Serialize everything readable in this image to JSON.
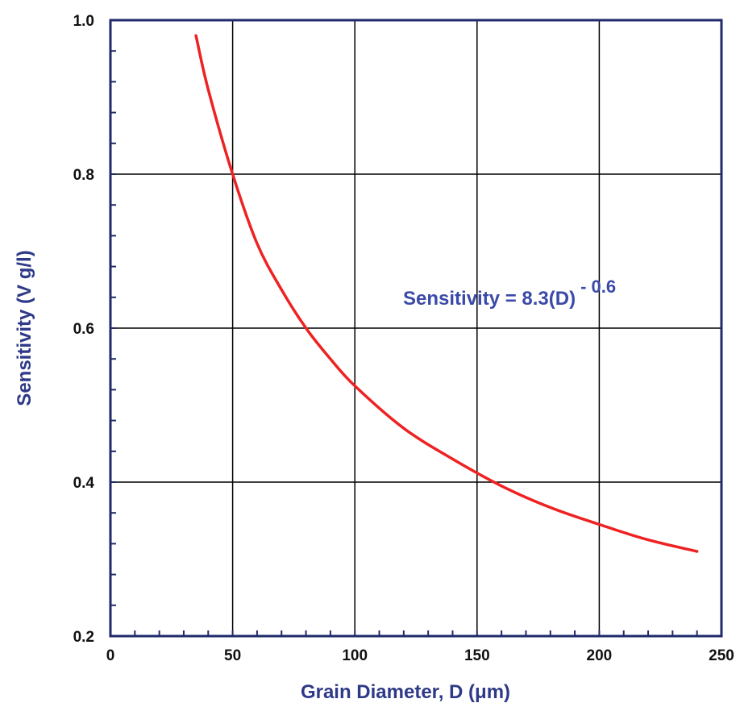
{
  "chart_data": {
    "type": "line",
    "title": "",
    "xlabel": "Grain Diameter, D (μm)",
    "ylabel": "Sensitivity (V g/l)",
    "xlim": [
      0,
      250
    ],
    "ylim": [
      0.2,
      1.0
    ],
    "x_ticks": [
      "0",
      "50",
      "100",
      "150",
      "200",
      "250"
    ],
    "y_ticks": [
      "0.2",
      "0.4",
      "0.6",
      "0.8",
      "1.0"
    ],
    "grid": true,
    "series": [
      {
        "color": "#ee2222",
        "x": [
          35,
          40,
          50,
          60,
          70,
          80,
          90,
          100,
          120,
          140,
          160,
          180,
          200,
          220,
          240
        ],
        "y": [
          0.98,
          0.91,
          0.8,
          0.71,
          0.65,
          0.6,
          0.56,
          0.525,
          0.47,
          0.43,
          0.395,
          0.367,
          0.345,
          0.325,
          0.31
        ]
      }
    ],
    "annotation": {
      "text": "Sensitivity = 8.3(D)",
      "superscript": "- 0.6"
    }
  },
  "colors": {
    "axis": "#1f2a6b",
    "grid": "#000000",
    "curve": "#ee2222",
    "label": "#2e3a87"
  }
}
